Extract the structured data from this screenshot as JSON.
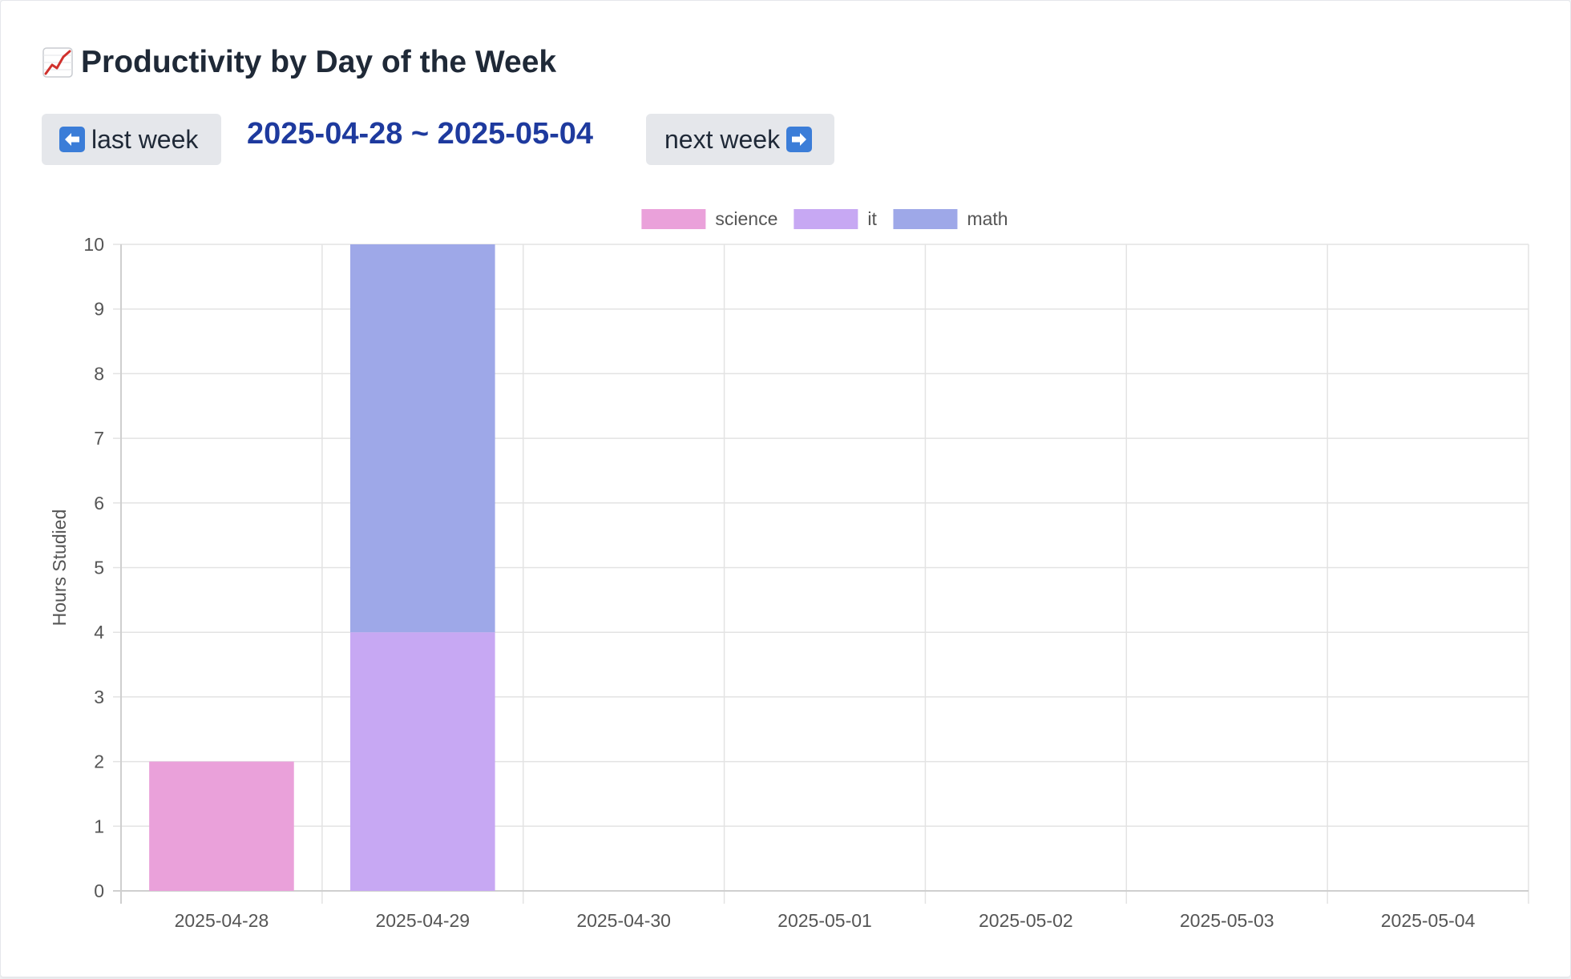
{
  "header": {
    "title": "Productivity by Day of the Week",
    "title_icon": "chart-increasing-icon"
  },
  "nav": {
    "prev_label": "last week",
    "prev_icon": "left-arrow-icon",
    "range": "2025-04-28 ~ 2025-05-04",
    "next_label": "next week",
    "next_icon": "right-arrow-icon"
  },
  "chart_data": {
    "type": "bar",
    "stacked": true,
    "categories": [
      "2025-04-28",
      "2025-04-29",
      "2025-04-30",
      "2025-05-01",
      "2025-05-02",
      "2025-05-03",
      "2025-05-04"
    ],
    "series": [
      {
        "name": "science",
        "color": "#eaa1da",
        "values": [
          2,
          0,
          0,
          0,
          0,
          0,
          0
        ]
      },
      {
        "name": "it",
        "color": "#c7a8f3",
        "values": [
          0,
          4,
          0,
          0,
          0,
          0,
          0
        ]
      },
      {
        "name": "math",
        "color": "#9ea8e8",
        "values": [
          0,
          6,
          0,
          0,
          0,
          0,
          0
        ]
      }
    ],
    "ylabel": "Hours Studied",
    "xlabel": "",
    "ylim": [
      0,
      10
    ],
    "yticks": [
      0,
      1,
      2,
      3,
      4,
      5,
      6,
      7,
      8,
      9,
      10
    ],
    "grid": true,
    "legend_position": "top-center"
  }
}
